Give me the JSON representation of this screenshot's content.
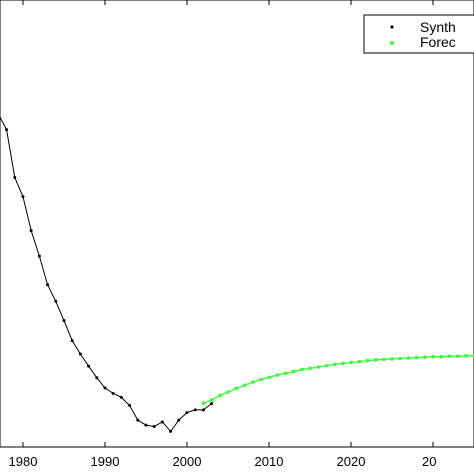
{
  "chart_data": {
    "type": "line",
    "title": "",
    "xlabel": "",
    "ylabel": "",
    "xlim": [
      1977.2,
      2035.0
    ],
    "ylim": [
      0,
      100
    ],
    "x_ticks": [
      "1980",
      "1990",
      "2000",
      "2010",
      "2020",
      "20"
    ],
    "grid": false,
    "legend_position": "top-right",
    "series": [
      {
        "name": "Synth",
        "color": "#000000",
        "marker": "dot",
        "x": [
          1977,
          1978,
          1979,
          1980,
          1981,
          1982,
          1983,
          1984,
          1985,
          1986,
          1987,
          1988,
          1989,
          1990,
          1991,
          1992,
          1993,
          1994,
          1995,
          1996,
          1997,
          1998,
          1999,
          2000,
          2001,
          2002,
          2003
        ],
        "y": [
          74.5,
          71.0,
          60.3,
          56.0,
          48.4,
          42.7,
          36.3,
          32.6,
          28.3,
          23.8,
          20.8,
          18.1,
          15.5,
          13.2,
          12.0,
          11.1,
          9.3,
          6.0,
          4.9,
          4.6,
          5.6,
          3.5,
          6.0,
          7.7,
          8.3,
          8.3,
          9.7
        ]
      },
      {
        "name": "Forec",
        "color": "#33ff33",
        "marker": "dot",
        "x": [
          2002,
          2003,
          2004,
          2005,
          2006,
          2007,
          2008,
          2009,
          2010,
          2011,
          2012,
          2013,
          2014,
          2015,
          2016,
          2017,
          2018,
          2019,
          2020,
          2021,
          2022,
          2023,
          2024,
          2025,
          2026,
          2027,
          2028,
          2029,
          2030,
          2031,
          2032,
          2033,
          2034,
          2035
        ],
        "y": [
          9.8,
          10.5,
          11.5,
          12.3,
          13.1,
          13.8,
          14.5,
          15.1,
          15.6,
          16.1,
          16.5,
          16.9,
          17.3,
          17.6,
          17.9,
          18.2,
          18.5,
          18.7,
          18.9,
          19.1,
          19.3,
          19.5,
          19.6,
          19.7,
          19.8,
          19.9,
          20.0,
          20.1,
          20.2,
          20.2,
          20.3,
          20.3,
          20.4,
          20.4
        ]
      }
    ]
  }
}
